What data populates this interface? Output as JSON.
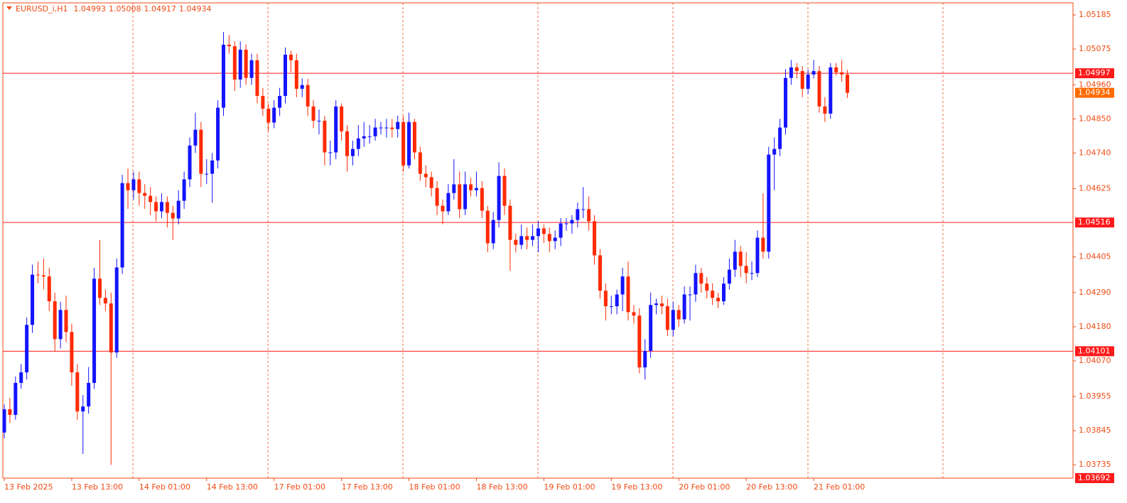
{
  "chart_data": {
    "type": "candlestick",
    "title": "EURUSD_i,H1",
    "up_color": "#1414ff",
    "down_color": "#ff2a00",
    "level_color": "#ff1a1a",
    "bid_color": "#ff6a00",
    "axis_color": "#f04a12",
    "grid": true,
    "ylim": [
      1.03692,
      1.05224
    ],
    "yticks": [
      1.05185,
      1.05075,
      {
        "value": 1.0496,
        "label": "1.04960"
      },
      {
        "value": 1.0485,
        "label": "1.04850"
      },
      {
        "value": 1.0474,
        "label": "1.04740"
      },
      1.04625,
      1.04405,
      {
        "value": 1.0429,
        "label": "1.04290"
      },
      {
        "value": 1.0418,
        "label": "1.04180"
      },
      {
        "value": 1.0407,
        "label": "1.04070"
      },
      1.03955,
      1.03845,
      1.03735
    ],
    "levels": [
      1.04997,
      1.04516,
      1.04101
    ],
    "bid": 1.04934,
    "categories": [
      "13 Feb 2025",
      null,
      null,
      null,
      null,
      null,
      null,
      null,
      null,
      null,
      null,
      null,
      "13 Feb 13:00",
      null,
      null,
      null,
      null,
      null,
      null,
      null,
      null,
      null,
      null,
      null,
      "14 Feb 01:00",
      null,
      null,
      null,
      null,
      null,
      null,
      null,
      null,
      null,
      null,
      null,
      "14 Feb 13:00",
      null,
      null,
      null,
      null,
      null,
      null,
      null,
      null,
      null,
      null,
      null,
      "17 Feb 01:00",
      null,
      null,
      null,
      null,
      null,
      null,
      null,
      null,
      null,
      null,
      null,
      "17 Feb 13:00",
      null,
      null,
      null,
      null,
      null,
      null,
      null,
      null,
      null,
      null,
      null,
      "18 Feb 01:00",
      null,
      null,
      null,
      null,
      null,
      null,
      null,
      null,
      null,
      null,
      null,
      "18 Feb 13:00",
      null,
      null,
      null,
      null,
      null,
      null,
      null,
      null,
      null,
      null,
      null,
      "19 Feb 01:00",
      null,
      null,
      null,
      null,
      null,
      null,
      null,
      null,
      null,
      null,
      null,
      "19 Feb 13:00",
      null,
      null,
      null,
      null,
      null,
      null,
      null,
      null,
      null,
      null,
      null,
      "20 Feb 01:00",
      null,
      null,
      null,
      null,
      null,
      null,
      null,
      null,
      null,
      null,
      null,
      "20 Feb 13:00",
      null,
      null,
      null,
      null,
      null,
      null,
      null,
      null,
      null,
      null,
      null,
      "21 Feb 01:00",
      null,
      null,
      null,
      null,
      null,
      null
    ],
    "ohlc": [
      [
        1.03839,
        1.0393,
        1.0382,
        1.03914
      ],
      [
        1.03914,
        1.0395,
        1.0387,
        1.03896
      ],
      [
        1.03896,
        1.0402,
        1.0388,
        1.03999
      ],
      [
        1.03999,
        1.0406,
        1.0398,
        1.04033
      ],
      [
        1.04033,
        1.0421,
        1.0401,
        1.04186
      ],
      [
        1.04186,
        1.0438,
        1.0416,
        1.04348
      ],
      [
        1.04348,
        1.0439,
        1.0432,
        1.04346
      ],
      [
        1.04346,
        1.044,
        1.043,
        1.04342
      ],
      [
        1.04342,
        1.0437,
        1.0423,
        1.04262
      ],
      [
        1.04262,
        1.0429,
        1.041,
        1.0414
      ],
      [
        1.0414,
        1.0426,
        1.0411,
        1.04234
      ],
      [
        1.04234,
        1.0428,
        1.0413,
        1.04163
      ],
      [
        1.04163,
        1.0419,
        1.0399,
        1.04033
      ],
      [
        1.04033,
        1.0406,
        1.0388,
        1.03907
      ],
      [
        1.03907,
        1.0396,
        1.0377,
        1.03923
      ],
      [
        1.03923,
        1.0405,
        1.039,
        1.03999
      ],
      [
        1.03999,
        1.0437,
        1.0398,
        1.04335
      ],
      [
        1.04335,
        1.0446,
        1.0425,
        1.04273
      ],
      [
        1.04273,
        1.043,
        1.0423,
        1.04255
      ],
      [
        1.04255,
        1.0429,
        1.03735,
        1.04097
      ],
      [
        1.04097,
        1.044,
        1.0408,
        1.04371
      ],
      [
        1.04371,
        1.0467,
        1.0435,
        1.04643
      ],
      [
        1.04643,
        1.0469,
        1.0456,
        1.0462
      ],
      [
        1.0462,
        1.0468,
        1.0459,
        1.04655
      ],
      [
        1.04655,
        1.0468,
        1.0457,
        1.04611
      ],
      [
        1.04611,
        1.0464,
        1.0456,
        1.04602
      ],
      [
        1.04602,
        1.0463,
        1.0454,
        1.04582
      ],
      [
        1.04582,
        1.046,
        1.0452,
        1.04552
      ],
      [
        1.04552,
        1.0461,
        1.0453,
        1.04582
      ],
      [
        1.04582,
        1.046,
        1.045,
        1.04547
      ],
      [
        1.04547,
        1.0457,
        1.0446,
        1.04529
      ],
      [
        1.04529,
        1.0462,
        1.0451,
        1.04586
      ],
      [
        1.04586,
        1.0468,
        1.0456,
        1.04655
      ],
      [
        1.04655,
        1.0479,
        1.0463,
        1.04764
      ],
      [
        1.04764,
        1.0487,
        1.0474,
        1.04815
      ],
      [
        1.04815,
        1.0484,
        1.0463,
        1.04673
      ],
      [
        1.04673,
        1.0472,
        1.0464,
        1.04673
      ],
      [
        1.04673,
        1.0474,
        1.0458,
        1.04716
      ],
      [
        1.04716,
        1.0491,
        1.0469,
        1.04886
      ],
      [
        1.04886,
        1.0513,
        1.0486,
        1.05089
      ],
      [
        1.05089,
        1.0512,
        1.0506,
        1.05084
      ],
      [
        1.05084,
        1.051,
        1.0494,
        1.04977
      ],
      [
        1.04977,
        1.051,
        1.0495,
        1.05073
      ],
      [
        1.05073,
        1.0509,
        1.0496,
        1.04982
      ],
      [
        1.04982,
        1.0506,
        1.0496,
        1.05039
      ],
      [
        1.05039,
        1.0506,
        1.049,
        1.04924
      ],
      [
        1.04924,
        1.0495,
        1.0486,
        1.04883
      ],
      [
        1.04883,
        1.049,
        1.0481,
        1.04838
      ],
      [
        1.04838,
        1.0491,
        1.0482,
        1.04886
      ],
      [
        1.04886,
        1.0495,
        1.0486,
        1.04924
      ],
      [
        1.04924,
        1.0508,
        1.049,
        1.05057
      ],
      [
        1.05057,
        1.0507,
        1.05,
        1.05039
      ],
      [
        1.05039,
        1.0506,
        1.0492,
        1.04947
      ],
      [
        1.04947,
        1.0498,
        1.0492,
        1.04959
      ],
      [
        1.04959,
        1.0498,
        1.0486,
        1.0489
      ],
      [
        1.0489,
        1.0491,
        1.0482,
        1.04844
      ],
      [
        1.04844,
        1.0488,
        1.048,
        1.04844
      ],
      [
        1.04844,
        1.0486,
        1.047,
        1.04742
      ],
      [
        1.04742,
        1.0478,
        1.047,
        1.04742
      ],
      [
        1.04742,
        1.0491,
        1.0472,
        1.0489
      ],
      [
        1.0489,
        1.049,
        1.0478,
        1.0481
      ],
      [
        1.0481,
        1.0483,
        1.0468,
        1.0473
      ],
      [
        1.0473,
        1.0478,
        1.047,
        1.04753
      ],
      [
        1.04753,
        1.0483,
        1.0473,
        1.04787
      ],
      [
        1.04787,
        1.0484,
        1.0476,
        1.04794
      ],
      [
        1.04794,
        1.0483,
        1.0477,
        1.04794
      ],
      [
        1.04794,
        1.0485,
        1.0478,
        1.04822
      ],
      [
        1.04822,
        1.0484,
        1.048,
        1.04822
      ],
      [
        1.04822,
        1.0485,
        1.0479,
        1.04822
      ],
      [
        1.04822,
        1.0485,
        1.0479,
        1.04817
      ],
      [
        1.04817,
        1.0486,
        1.0479,
        1.0484
      ],
      [
        1.0484,
        1.0486,
        1.0468,
        1.047
      ],
      [
        1.047,
        1.0487,
        1.0469,
        1.0484
      ],
      [
        1.0484,
        1.0485,
        1.0472,
        1.04742
      ],
      [
        1.04742,
        1.0476,
        1.0465,
        1.04673
      ],
      [
        1.04673,
        1.047,
        1.0463,
        1.04662
      ],
      [
        1.04662,
        1.0468,
        1.046,
        1.04627
      ],
      [
        1.04627,
        1.0465,
        1.0454,
        1.0457
      ],
      [
        1.0457,
        1.0459,
        1.0451,
        1.04552
      ],
      [
        1.04552,
        1.0464,
        1.0454,
        1.04611
      ],
      [
        1.04611,
        1.0472,
        1.0459,
        1.04639
      ],
      [
        1.04639,
        1.0468,
        1.0453,
        1.04559
      ],
      [
        1.04559,
        1.0468,
        1.0454,
        1.04639
      ],
      [
        1.04639,
        1.0466,
        1.046,
        1.0462
      ],
      [
        1.0462,
        1.0468,
        1.046,
        1.04627
      ],
      [
        1.04627,
        1.0465,
        1.0453,
        1.04554
      ],
      [
        1.04554,
        1.0457,
        1.0442,
        1.04449
      ],
      [
        1.04449,
        1.0455,
        1.0443,
        1.04524
      ],
      [
        1.04524,
        1.0471,
        1.045,
        1.04666
      ],
      [
        1.04666,
        1.0469,
        1.0454,
        1.0457
      ],
      [
        1.0457,
        1.0459,
        1.0436,
        1.0446
      ],
      [
        1.0446,
        1.0448,
        1.0442,
        1.04444
      ],
      [
        1.04444,
        1.0451,
        1.0443,
        1.04472
      ],
      [
        1.04472,
        1.045,
        1.0443,
        1.0446
      ],
      [
        1.0446,
        1.0451,
        1.0444,
        1.04472
      ],
      [
        1.04472,
        1.0452,
        1.0442,
        1.04497
      ],
      [
        1.04497,
        1.0451,
        1.0445,
        1.04479
      ],
      [
        1.04479,
        1.045,
        1.0442,
        1.04456
      ],
      [
        1.04456,
        1.0449,
        1.0443,
        1.04467
      ],
      [
        1.04467,
        1.0453,
        1.0444,
        1.04513
      ],
      [
        1.04513,
        1.0453,
        1.0449,
        1.04513
      ],
      [
        1.04513,
        1.0454,
        1.0448,
        1.04524
      ],
      [
        1.04524,
        1.0458,
        1.045,
        1.04559
      ],
      [
        1.04559,
        1.0463,
        1.0453,
        1.04559
      ],
      [
        1.04559,
        1.046,
        1.0449,
        1.0452
      ],
      [
        1.0452,
        1.0454,
        1.0438,
        1.0441
      ],
      [
        1.0441,
        1.0443,
        1.0427,
        1.04296
      ],
      [
        1.04296,
        1.0432,
        1.042,
        1.04246
      ],
      [
        1.04246,
        1.0428,
        1.0422,
        1.04246
      ],
      [
        1.04246,
        1.043,
        1.0422,
        1.04284
      ],
      [
        1.04284,
        1.0437,
        1.0423,
        1.04342
      ],
      [
        1.04342,
        1.0439,
        1.042,
        1.04227
      ],
      [
        1.04227,
        1.0425,
        1.0419,
        1.04216
      ],
      [
        1.04216,
        1.0424,
        1.0403,
        1.04049
      ],
      [
        1.04049,
        1.0414,
        1.0401,
        1.04102
      ],
      [
        1.04102,
        1.0429,
        1.0408,
        1.0425
      ],
      [
        1.0425,
        1.0427,
        1.0422,
        1.04255
      ],
      [
        1.04255,
        1.0428,
        1.0422,
        1.04246
      ],
      [
        1.04246,
        1.0427,
        1.0415,
        1.0417
      ],
      [
        1.0417,
        1.0426,
        1.0415,
        1.04234
      ],
      [
        1.04234,
        1.0425,
        1.0418,
        1.04204
      ],
      [
        1.04204,
        1.0431,
        1.0419,
        1.04284
      ],
      [
        1.04284,
        1.0431,
        1.042,
        1.04284
      ],
      [
        1.04284,
        1.0438,
        1.0426,
        1.04353
      ],
      [
        1.04353,
        1.0437,
        1.0429,
        1.04319
      ],
      [
        1.04319,
        1.0434,
        1.0427,
        1.04296
      ],
      [
        1.04296,
        1.0432,
        1.0425,
        1.04273
      ],
      [
        1.04273,
        1.0429,
        1.0424,
        1.04262
      ],
      [
        1.04262,
        1.0434,
        1.0425,
        1.04319
      ],
      [
        1.04319,
        1.044,
        1.043,
        1.04364
      ],
      [
        1.04364,
        1.0446,
        1.0434,
        1.04422
      ],
      [
        1.04422,
        1.0444,
        1.0434,
        1.04376
      ],
      [
        1.04376,
        1.0442,
        1.0432,
        1.04353
      ],
      [
        1.04353,
        1.0439,
        1.0433,
        1.04353
      ],
      [
        1.04353,
        1.0449,
        1.0434,
        1.04467
      ],
      [
        1.04467,
        1.0461,
        1.044,
        1.04422
      ],
      [
        1.04422,
        1.0476,
        1.044,
        1.04735
      ],
      [
        1.04735,
        1.0479,
        1.0462,
        1.04753
      ],
      [
        1.04753,
        1.0485,
        1.0473,
        1.04822
      ],
      [
        1.04822,
        1.0501,
        1.048,
        1.04982
      ],
      [
        1.04982,
        1.0504,
        1.0496,
        1.05016
      ],
      [
        1.05016,
        1.0503,
        1.0498,
        1.05004
      ],
      [
        1.05004,
        1.0502,
        1.0492,
        1.04947
      ],
      [
        1.04947,
        1.0501,
        1.0493,
        1.04993
      ],
      [
        1.04993,
        1.0504,
        1.0498,
        1.05004
      ],
      [
        1.05004,
        1.0502,
        1.0487,
        1.0489
      ],
      [
        1.0489,
        1.0492,
        1.0484,
        1.04867
      ],
      [
        1.04867,
        1.0503,
        1.0485,
        1.05016
      ],
      [
        1.05016,
        1.0503,
        1.0499,
        1.05
      ],
      [
        1.05,
        1.0504,
        1.0497,
        1.04993
      ],
      [
        1.04993,
        1.05008,
        1.04917,
        1.04934
      ]
    ]
  }
}
